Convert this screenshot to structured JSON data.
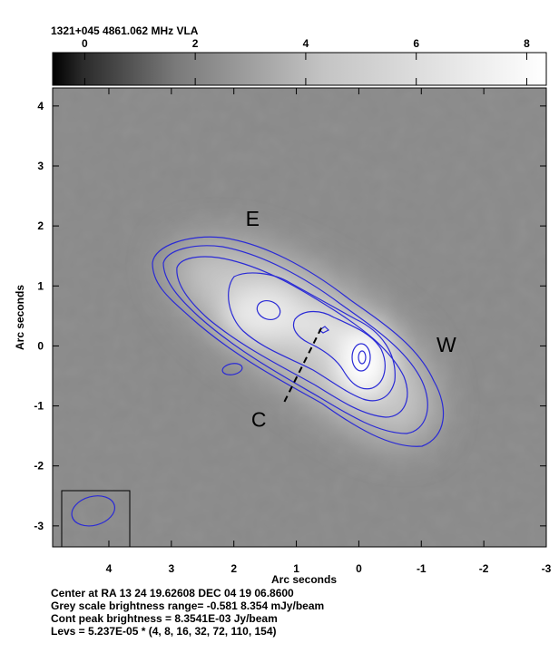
{
  "chart_data": {
    "type": "heatmap",
    "title": "1321+045  4861.062 MHz  VLA",
    "source": "1321+045",
    "frequency": "4861.062 MHz",
    "telescope": "VLA",
    "colorbar": {
      "ticks": [
        "0",
        "2",
        "4",
        "6",
        "8"
      ],
      "tick_values": [
        0,
        2,
        4,
        6,
        8
      ],
      "range": [
        -0.581,
        8.354
      ]
    },
    "xlabel": "Arc seconds",
    "ylabel": "Arc seconds",
    "xlim": [
      4.9,
      -3
    ],
    "ylim": [
      -3.35,
      4.3
    ],
    "x_ticks": [
      4,
      3,
      2,
      1,
      0,
      -1,
      -2,
      -3
    ],
    "x_tick_labels": [
      "4",
      "3",
      "2",
      "1",
      "0",
      "-1",
      "-2",
      "-3"
    ],
    "y_ticks": [
      4,
      3,
      2,
      1,
      0,
      -1,
      -2,
      -3
    ],
    "y_tick_labels": [
      "4",
      "3",
      "2",
      "1",
      "0",
      "-1",
      "-2",
      "-3"
    ],
    "annotations": [
      {
        "text": "E",
        "x": 1.7,
        "y": 2.0
      },
      {
        "text": "W",
        "x": -1.4,
        "y": -0.1
      },
      {
        "text": "C",
        "x": 1.6,
        "y": -1.35
      }
    ],
    "components": [
      {
        "name": "E",
        "x": 1.5,
        "y": 0.65,
        "peak": 0.45
      },
      {
        "name": "C",
        "x": 0.6,
        "y": 0.3,
        "peak": 0.25
      },
      {
        "name": "W",
        "x": 0.0,
        "y": -0.1,
        "peak": 1.0
      }
    ],
    "core_marker_line": [
      [
        0.6,
        0.3
      ],
      [
        1.2,
        -0.95
      ]
    ],
    "beam": {
      "x": 4.25,
      "y": -2.75,
      "major": 0.7,
      "minor": 0.48,
      "pa_deg": 15
    },
    "contour_levels_multipliers": [
      4,
      8,
      16,
      32,
      72,
      110,
      154
    ],
    "contour_base": 5.237e-05,
    "footer": [
      "Center at RA 13 24 19.62608  DEC 04 19 06.8600",
      "Grey scale brightness range= -0.581 8.354 mJy/beam",
      "Cont peak brightness = 8.3541E-03 Jy/beam",
      "Levs = 5.237E-05 * (4, 8, 16, 32, 72, 110, 154)"
    ],
    "colors": {
      "contour": "#2a2ad6",
      "background_grey": "#8a8a8a",
      "beam_box": "#000000"
    }
  }
}
